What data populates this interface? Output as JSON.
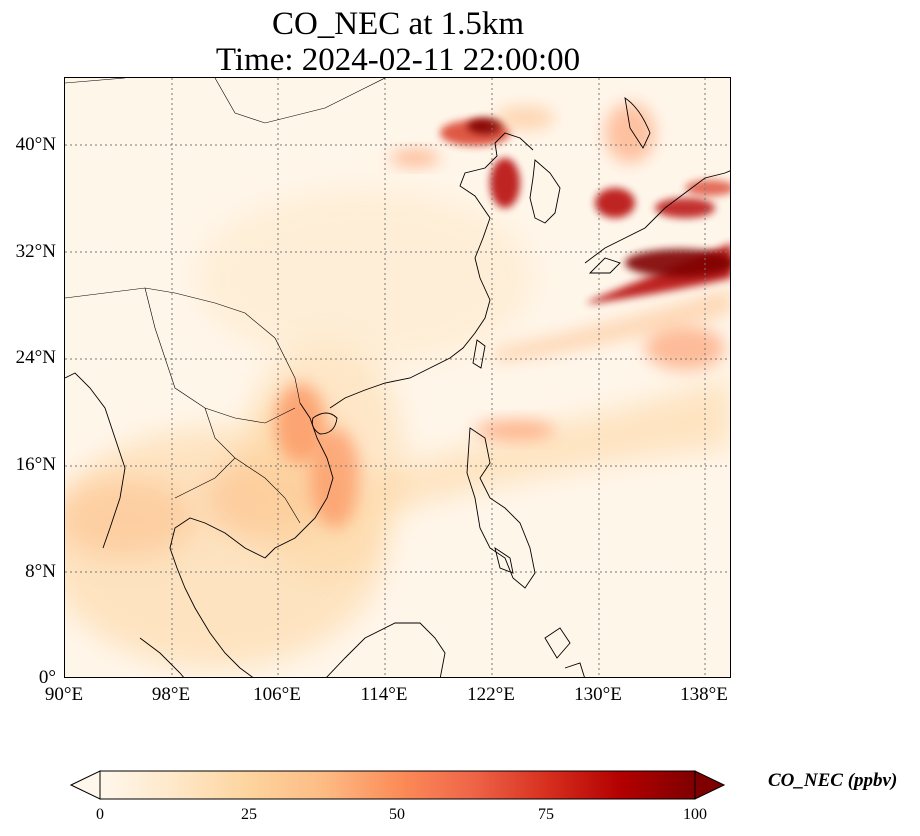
{
  "title": {
    "line1": "CO_NEC at 1.5km",
    "line2": "Time: 2024-02-11 22:00:00"
  },
  "map": {
    "lon_range": [
      90,
      140
    ],
    "lat_range": [
      0,
      45
    ],
    "x_ticks": [
      "90°E",
      "98°E",
      "106°E",
      "114°E",
      "122°E",
      "130°E",
      "138°E"
    ],
    "y_ticks": [
      "0°",
      "8°N",
      "16°N",
      "24°N",
      "32°N",
      "40°N"
    ],
    "gridlines": "dotted",
    "colormap": "OrRd"
  },
  "colorbar": {
    "label": "CO_NEC (ppbv)",
    "ticks": [
      "0",
      "25",
      "50",
      "75",
      "100"
    ],
    "range": [
      0,
      100
    ],
    "extend": "both",
    "colors": [
      "#fff7ec",
      "#fee8c8",
      "#fdd49e",
      "#fdbb84",
      "#fc8d59",
      "#ef6548",
      "#d7301f",
      "#b30000",
      "#7f0000"
    ]
  }
}
